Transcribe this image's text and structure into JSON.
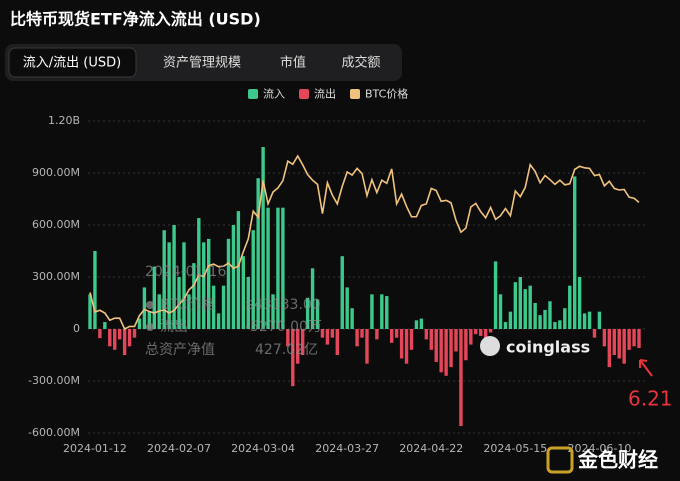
{
  "page": {
    "title": "比特币现货ETF净流入流出 (USD)",
    "tabs": [
      "流入/流出 (USD)",
      "资产管理规模",
      "市值",
      "成交额"
    ]
  },
  "chart_data": {
    "type": "bar",
    "categories": [
      null,
      "2024-01-12",
      null,
      null,
      null,
      null,
      null,
      null,
      null,
      null,
      null,
      null,
      null,
      null,
      null,
      null,
      null,
      null,
      "2024-02-07",
      null,
      null,
      null,
      null,
      null,
      null,
      null,
      null,
      null,
      null,
      null,
      null,
      null,
      null,
      null,
      null,
      "2024-03-04",
      null,
      null,
      null,
      null,
      null,
      null,
      null,
      null,
      null,
      null,
      null,
      null,
      null,
      null,
      null,
      null,
      "2024-03-27",
      null,
      null,
      null,
      null,
      null,
      null,
      null,
      null,
      null,
      null,
      null,
      null,
      null,
      null,
      null,
      null,
      "2024-04-22",
      null,
      null,
      null,
      null,
      null,
      null,
      null,
      null,
      null,
      null,
      null,
      null,
      null,
      null,
      null,
      null,
      "2024-05-15",
      null,
      null,
      null,
      null,
      null,
      null,
      null,
      null,
      null,
      null,
      null,
      null,
      null,
      null,
      null,
      null,
      "2024-06-10",
      null,
      null,
      null,
      null,
      null,
      null,
      null,
      null
    ],
    "series": [
      {
        "name": "流入",
        "color": "#3cc98b",
        "values": [
          200000000.0,
          450000000.0,
          null,
          40000000.0,
          null,
          null,
          null,
          null,
          null,
          null,
          60000000.0,
          240000000.0,
          100000000.0,
          360000000.0,
          200000000.0,
          570000000.0,
          500000000.0,
          600000000.0,
          300000000.0,
          500000000.0,
          200000000.0,
          380000000.0,
          640000000.0,
          500000000.0,
          520000000.0,
          250000000.0,
          90000000.0,
          250000000.0,
          520000000.0,
          600000000.0,
          680000000.0,
          420000000.0,
          300000000.0,
          570000000.0,
          870000000.0,
          1050000000.0,
          700000000.0,
          200000000.0,
          700000000.0,
          700000000.0,
          null,
          null,
          null,
          null,
          180000000.0,
          350000000.0,
          170000000.0,
          null,
          null,
          null,
          null,
          420000000.0,
          240000000.0,
          120000000.0,
          null,
          null,
          null,
          200000000.0,
          null,
          200000000.0,
          190000000.0,
          null,
          null,
          null,
          null,
          null,
          50000000.0,
          60000000.0,
          null,
          null,
          null,
          null,
          null,
          null,
          null,
          null,
          null,
          null,
          null,
          null,
          null,
          null,
          390000000.0,
          200000000.0,
          40000000.0,
          100000000.0,
          270000000.0,
          300000000.0,
          230000000.0,
          250000000.0,
          150000000.0,
          80000000.0,
          110000000.0,
          160000000.0,
          40000000.0,
          50000000.0,
          120000000.0,
          250000000.0,
          880000000.0,
          300000000.0,
          90000000.0,
          100000000.0,
          null,
          100000000.0,
          null,
          null,
          null,
          null,
          null,
          null,
          null,
          null
        ]
      },
      {
        "name": "流出",
        "color": "#e5475a",
        "values": [
          null,
          null,
          -52700000.0,
          null,
          -100000000.0,
          -120000000.0,
          -60000000.0,
          -150000000.0,
          -100000000.0,
          -50000000.0,
          null,
          null,
          null,
          null,
          null,
          null,
          null,
          null,
          null,
          null,
          null,
          null,
          null,
          null,
          null,
          null,
          null,
          null,
          null,
          null,
          null,
          null,
          null,
          null,
          null,
          null,
          null,
          null,
          null,
          null,
          -100000000.0,
          -330000000.0,
          -200000000.0,
          -150000000.0,
          null,
          null,
          null,
          -50000000.0,
          -90000000.0,
          -50000000.0,
          -150000000.0,
          null,
          null,
          null,
          -100000000.0,
          -50000000.0,
          -200000000.0,
          null,
          -60000000.0,
          null,
          null,
          -80000000.0,
          -50000000.0,
          -170000000.0,
          -200000000.0,
          -120000000.0,
          null,
          null,
          -60000000.0,
          -120000000.0,
          -190000000.0,
          -250000000.0,
          -270000000.0,
          -220000000.0,
          -130000000.0,
          -560000000.0,
          -180000000.0,
          -90000000.0,
          -30000000.0,
          -40000000.0,
          -120000000.0,
          -20000000.0,
          null,
          null,
          null,
          null,
          null,
          null,
          null,
          null,
          null,
          null,
          null,
          null,
          null,
          null,
          null,
          null,
          null,
          null,
          null,
          null,
          -50000000.0,
          null,
          -100000000.0,
          -220000000.0,
          -150000000.0,
          -170000000.0,
          -200000000.0,
          -120000000.0,
          -100000000.0,
          -110000000.0
        ]
      },
      {
        "name": "BTC价格",
        "color": "#f1c27d",
        "type": "line",
        "axis": "y2",
        "values": [
          46600,
          42800,
          43133,
          42600,
          41200,
          41600,
          41600,
          39500,
          40000,
          40000,
          42100,
          43300,
          42900,
          42600,
          43000,
          43200,
          42600,
          43100,
          44300,
          45300,
          47100,
          48000,
          50000,
          49700,
          51800,
          52100,
          51600,
          51700,
          52300,
          51300,
          51700,
          54500,
          57000,
          62400,
          61200,
          68300,
          63800,
          66100,
          66900,
          68300,
          72100,
          71500,
          73100,
          71400,
          69500,
          68400,
          67600,
          61900,
          67900,
          65500,
          63800,
          67200,
          70000,
          69400,
          70700,
          69700,
          65400,
          68500,
          66000,
          68400,
          67800,
          70600,
          63800,
          65700,
          63300,
          61300,
          61300,
          63500,
          63800,
          66800,
          66400,
          64300,
          64500,
          64000,
          60600,
          58300,
          59100,
          63200,
          63900,
          62300,
          61100,
          63100,
          60800,
          61500,
          62900,
          61500,
          66300,
          65200,
          67000,
          71400,
          70100,
          67900,
          69300,
          68500,
          67600,
          68400,
          67500,
          67700,
          70500,
          71100,
          70800,
          70700,
          69300,
          69500,
          67300,
          68200,
          66800,
          66500,
          66600,
          65100,
          64900,
          64100
        ]
      }
    ],
    "ylim": [
      -600000000.0,
      1200000000.0
    ],
    "yticks": [
      {
        "value": -600000000.0,
        "label": "-600.00M"
      },
      {
        "value": -300000000.0,
        "label": "-300.00M"
      },
      0,
      {
        "value": 300000000.0,
        "label": "300.00M"
      },
      {
        "value": 600000000.0,
        "label": "600.00M"
      },
      {
        "value": 900000000.0,
        "label": "900.00M"
      },
      {
        "value": 1200000000.0,
        "label": "1.20B"
      }
    ],
    "y2lim": [
      19300,
      79900
    ],
    "grid": true,
    "tooltip": {
      "date": "2024-01-16",
      "rows": [
        [
          "BTC价格",
          "$43133.00"
        ],
        [
          "流出",
          "-5270.00万"
        ],
        [
          "总资产净值",
          "427.02亿"
        ]
      ]
    },
    "watermark": "coinglass",
    "annotation": "6.21"
  },
  "footer_logo": "金色财经"
}
